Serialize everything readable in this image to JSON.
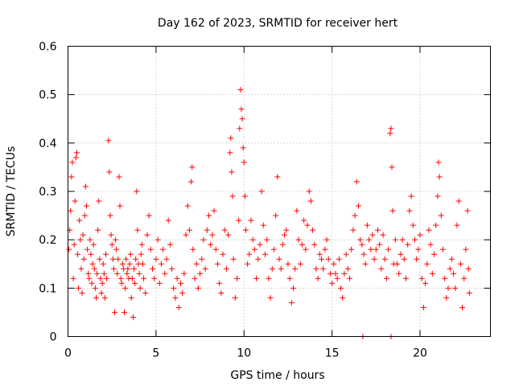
{
  "chart_data": {
    "type": "scatter",
    "title": "Day 162 of 2023, SRMTID for receiver hert",
    "xlabel": "GPS time / hours",
    "ylabel": "SRMTID / TECUs",
    "xlim": [
      0,
      24
    ],
    "ylim": [
      0,
      0.6
    ],
    "xticks": [
      0,
      5,
      10,
      15,
      20
    ],
    "xtick_labels": [
      "0",
      "5",
      "10",
      "15",
      "20"
    ],
    "yticks": [
      0,
      0.1,
      0.2,
      0.3,
      0.4,
      0.5,
      0.6
    ],
    "ytick_labels": [
      "0",
      "0.1",
      "0.2",
      "0.3",
      "0.4",
      "0.5",
      "0.6"
    ],
    "grid": true,
    "marker": "plus",
    "color": "#ff0000",
    "series": [
      {
        "name": "SRMTID",
        "points": [
          [
            0.05,
            0.18
          ],
          [
            0.1,
            0.22
          ],
          [
            0.15,
            0.26
          ],
          [
            0.2,
            0.33
          ],
          [
            0.25,
            0.36
          ],
          [
            0.3,
            0.12
          ],
          [
            0.35,
            0.19
          ],
          [
            0.4,
            0.28
          ],
          [
            0.45,
            0.37
          ],
          [
            0.5,
            0.38
          ],
          [
            0.55,
            0.17
          ],
          [
            0.6,
            0.1
          ],
          [
            0.65,
            0.24
          ],
          [
            0.7,
            0.2
          ],
          [
            0.75,
            0.14
          ],
          [
            0.8,
            0.09
          ],
          [
            0.85,
            0.21
          ],
          [
            0.9,
            0.16
          ],
          [
            0.95,
            0.25
          ],
          [
            1.0,
            0.31
          ],
          [
            1.05,
            0.27
          ],
          [
            1.1,
            0.18
          ],
          [
            1.15,
            0.13
          ],
          [
            1.2,
            0.12
          ],
          [
            1.25,
            0.2
          ],
          [
            1.3,
            0.17
          ],
          [
            1.35,
            0.11
          ],
          [
            1.4,
            0.15
          ],
          [
            1.45,
            0.19
          ],
          [
            1.5,
            0.14
          ],
          [
            1.55,
            0.1
          ],
          [
            1.6,
            0.08
          ],
          [
            1.65,
            0.13
          ],
          [
            1.7,
            0.22
          ],
          [
            1.75,
            0.28
          ],
          [
            1.8,
            0.16
          ],
          [
            1.85,
            0.12
          ],
          [
            1.9,
            0.09
          ],
          [
            1.95,
            0.11
          ],
          [
            2.0,
            0.15
          ],
          [
            2.05,
            0.13
          ],
          [
            2.1,
            0.08
          ],
          [
            2.15,
            0.17
          ],
          [
            2.2,
            0.12
          ],
          [
            2.3,
            0.405
          ],
          [
            2.35,
            0.34
          ],
          [
            2.4,
            0.25
          ],
          [
            2.45,
            0.21
          ],
          [
            2.5,
            0.19
          ],
          [
            2.55,
            0.16
          ],
          [
            2.6,
            0.14
          ],
          [
            2.65,
            0.05
          ],
          [
            2.7,
            0.2
          ],
          [
            2.75,
            0.18
          ],
          [
            2.8,
            0.13
          ],
          [
            2.85,
            0.16
          ],
          [
            2.9,
            0.33
          ],
          [
            2.95,
            0.27
          ],
          [
            3.0,
            0.12
          ],
          [
            3.05,
            0.11
          ],
          [
            3.1,
            0.15
          ],
          [
            3.15,
            0.14
          ],
          [
            3.2,
            0.05
          ],
          [
            3.25,
            0.1
          ],
          [
            3.3,
            0.16
          ],
          [
            3.35,
            0.13
          ],
          [
            3.4,
            0.14
          ],
          [
            3.45,
            0.12
          ],
          [
            3.5,
            0.15
          ],
          [
            3.55,
            0.17
          ],
          [
            3.6,
            0.08
          ],
          [
            3.65,
            0.12
          ],
          [
            3.7,
            0.04
          ],
          [
            3.75,
            0.14
          ],
          [
            3.8,
            0.11
          ],
          [
            3.85,
            0.16
          ],
          [
            3.9,
            0.3
          ],
          [
            3.95,
            0.22
          ],
          [
            4.0,
            0.15
          ],
          [
            4.05,
            0.13
          ],
          [
            4.1,
            0.1
          ],
          [
            4.15,
            0.17
          ],
          [
            4.2,
            0.19
          ],
          [
            4.25,
            0.15
          ],
          [
            4.3,
            0.12
          ],
          [
            4.4,
            0.09
          ],
          [
            4.5,
            0.21
          ],
          [
            4.6,
            0.25
          ],
          [
            4.7,
            0.18
          ],
          [
            4.8,
            0.14
          ],
          [
            4.9,
            0.12
          ],
          [
            5.0,
            0.16
          ],
          [
            5.1,
            0.2
          ],
          [
            5.2,
            0.11
          ],
          [
            5.3,
            0.15
          ],
          [
            5.4,
            0.18
          ],
          [
            5.5,
            0.13
          ],
          [
            5.6,
            0.16
          ],
          [
            5.7,
            0.24
          ],
          [
            5.8,
            0.19
          ],
          [
            5.9,
            0.14
          ],
          [
            6.0,
            0.1
          ],
          [
            6.1,
            0.08
          ],
          [
            6.2,
            0.12
          ],
          [
            6.3,
            0.06
          ],
          [
            6.4,
            0.11
          ],
          [
            6.5,
            0.09
          ],
          [
            6.6,
            0.13
          ],
          [
            6.7,
            0.21
          ],
          [
            6.8,
            0.27
          ],
          [
            6.9,
            0.22
          ],
          [
            7.0,
            0.32
          ],
          [
            7.05,
            0.35
          ],
          [
            7.1,
            0.18
          ],
          [
            7.2,
            0.12
          ],
          [
            7.3,
            0.15
          ],
          [
            7.4,
            0.1
          ],
          [
            7.5,
            0.13
          ],
          [
            7.6,
            0.16
          ],
          [
            7.7,
            0.2
          ],
          [
            7.8,
            0.14
          ],
          [
            7.9,
            0.22
          ],
          [
            8.0,
            0.25
          ],
          [
            8.1,
            0.19
          ],
          [
            8.2,
            0.21
          ],
          [
            8.3,
            0.26
          ],
          [
            8.4,
            0.18
          ],
          [
            8.5,
            0.15
          ],
          [
            8.6,
            0.11
          ],
          [
            8.7,
            0.09
          ],
          [
            8.8,
            0.17
          ],
          [
            8.9,
            0.22
          ],
          [
            9.0,
            0.14
          ],
          [
            9.1,
            0.21
          ],
          [
            9.2,
            0.38
          ],
          [
            9.25,
            0.41
          ],
          [
            9.3,
            0.34
          ],
          [
            9.35,
            0.29
          ],
          [
            9.4,
            0.16
          ],
          [
            9.5,
            0.08
          ],
          [
            9.6,
            0.12
          ],
          [
            9.7,
            0.24
          ],
          [
            9.75,
            0.43
          ],
          [
            9.8,
            0.51
          ],
          [
            9.85,
            0.47
          ],
          [
            9.9,
            0.45
          ],
          [
            9.95,
            0.39
          ],
          [
            10.0,
            0.36
          ],
          [
            10.05,
            0.29
          ],
          [
            10.1,
            0.22
          ],
          [
            10.2,
            0.15
          ],
          [
            10.3,
            0.17
          ],
          [
            10.4,
            0.24
          ],
          [
            10.5,
            0.2
          ],
          [
            10.6,
            0.18
          ],
          [
            10.7,
            0.12
          ],
          [
            10.8,
            0.16
          ],
          [
            10.9,
            0.19
          ],
          [
            11.0,
            0.3
          ],
          [
            11.1,
            0.23
          ],
          [
            11.2,
            0.17
          ],
          [
            11.3,
            0.2
          ],
          [
            11.4,
            0.12
          ],
          [
            11.5,
            0.08
          ],
          [
            11.6,
            0.14
          ],
          [
            11.7,
            0.18
          ],
          [
            11.8,
            0.25
          ],
          [
            11.9,
            0.33
          ],
          [
            12.0,
            0.16
          ],
          [
            12.1,
            0.14
          ],
          [
            12.2,
            0.19
          ],
          [
            12.3,
            0.21
          ],
          [
            12.4,
            0.22
          ],
          [
            12.5,
            0.15
          ],
          [
            12.6,
            0.12
          ],
          [
            12.7,
            0.07
          ],
          [
            12.8,
            0.1
          ],
          [
            12.9,
            0.14
          ],
          [
            13.0,
            0.26
          ],
          [
            13.1,
            0.2
          ],
          [
            13.2,
            0.15
          ],
          [
            13.3,
            0.19
          ],
          [
            13.4,
            0.24
          ],
          [
            13.5,
            0.18
          ],
          [
            13.6,
            0.23
          ],
          [
            13.7,
            0.3
          ],
          [
            13.8,
            0.28
          ],
          [
            13.9,
            0.22
          ],
          [
            14.0,
            0.19
          ],
          [
            14.1,
            0.14
          ],
          [
            14.2,
            0.12
          ],
          [
            14.3,
            0.17
          ],
          [
            14.4,
            0.16
          ],
          [
            14.5,
            0.14
          ],
          [
            14.6,
            0.18
          ],
          [
            14.7,
            0.2
          ],
          [
            14.8,
            0.16
          ],
          [
            14.9,
            0.13
          ],
          [
            15.0,
            0.11
          ],
          [
            15.1,
            0.15
          ],
          [
            15.2,
            0.13
          ],
          [
            15.3,
            0.12
          ],
          [
            15.4,
            0.16
          ],
          [
            15.5,
            0.1
          ],
          [
            15.6,
            0.08
          ],
          [
            15.7,
            0.13
          ],
          [
            15.8,
            0.17
          ],
          [
            15.9,
            0.14
          ],
          [
            16.0,
            0.12
          ],
          [
            16.1,
            0.18
          ],
          [
            16.2,
            0.22
          ],
          [
            16.3,
            0.25
          ],
          [
            16.4,
            0.32
          ],
          [
            16.5,
            0.27
          ],
          [
            16.6,
            0.2
          ],
          [
            16.7,
            0.19
          ],
          [
            16.8,
            0.17
          ],
          [
            16.9,
            0.15
          ],
          [
            17.0,
            0.23
          ],
          [
            17.1,
            0.2
          ],
          [
            17.2,
            0.18
          ],
          [
            17.3,
            0.21
          ],
          [
            17.4,
            0.16
          ],
          [
            17.5,
            0.18
          ],
          [
            17.6,
            0.22
          ],
          [
            17.7,
            0.19
          ],
          [
            17.8,
            0.14
          ],
          [
            17.9,
            0.21
          ],
          [
            18.0,
            0.16
          ],
          [
            18.1,
            0.12
          ],
          [
            18.2,
            0.18
          ],
          [
            18.3,
            0.42
          ],
          [
            18.35,
            0.43
          ],
          [
            18.4,
            0.35
          ],
          [
            18.45,
            0.26
          ],
          [
            18.5,
            0.15
          ],
          [
            18.6,
            0.2
          ],
          [
            18.7,
            0.15
          ],
          [
            18.8,
            0.13
          ],
          [
            18.9,
            0.17
          ],
          [
            19.0,
            0.2
          ],
          [
            19.1,
            0.16
          ],
          [
            19.2,
            0.12
          ],
          [
            19.3,
            0.19
          ],
          [
            19.4,
            0.26
          ],
          [
            19.5,
            0.29
          ],
          [
            19.6,
            0.23
          ],
          [
            19.7,
            0.2
          ],
          [
            19.8,
            0.16
          ],
          [
            19.9,
            0.18
          ],
          [
            20.0,
            0.21
          ],
          [
            20.1,
            0.12
          ],
          [
            20.2,
            0.06
          ],
          [
            20.3,
            0.11
          ],
          [
            20.4,
            0.15
          ],
          [
            20.5,
            0.22
          ],
          [
            20.6,
            0.19
          ],
          [
            20.7,
            0.13
          ],
          [
            20.8,
            0.17
          ],
          [
            20.9,
            0.23
          ],
          [
            21.0,
            0.29
          ],
          [
            21.05,
            0.36
          ],
          [
            21.1,
            0.33
          ],
          [
            21.2,
            0.25
          ],
          [
            21.3,
            0.18
          ],
          [
            21.4,
            0.12
          ],
          [
            21.5,
            0.08
          ],
          [
            21.6,
            0.1
          ],
          [
            21.7,
            0.14
          ],
          [
            21.8,
            0.16
          ],
          [
            21.9,
            0.13
          ],
          [
            22.0,
            0.1
          ],
          [
            22.1,
            0.23
          ],
          [
            22.2,
            0.28
          ],
          [
            22.3,
            0.15
          ],
          [
            22.4,
            0.06
          ],
          [
            22.5,
            0.12
          ],
          [
            22.6,
            0.18
          ],
          [
            22.7,
            0.26
          ],
          [
            22.75,
            0.14
          ],
          [
            22.8,
            0.09
          ],
          [
            16.75,
            0.0
          ],
          [
            18.35,
            0.0
          ]
        ]
      }
    ]
  }
}
